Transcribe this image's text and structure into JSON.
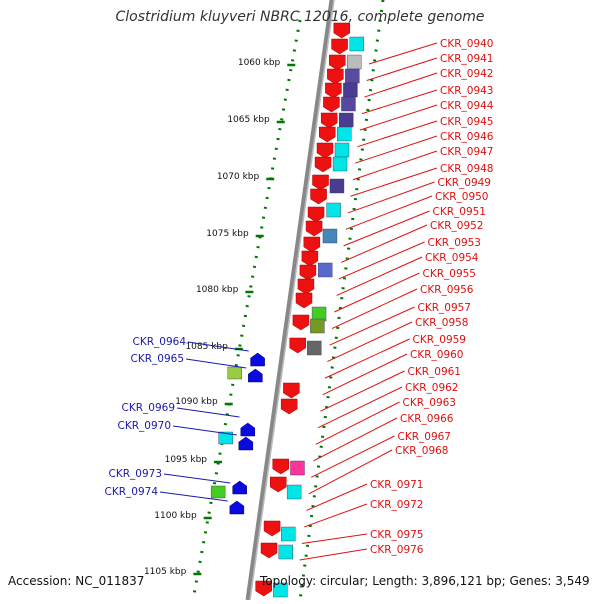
{
  "title": "Clostridium kluyveri NBRC 12016, complete genome",
  "footer": {
    "accession": "Accession: NC_011837",
    "topology": "Topology: circular; Length: 3,896,121 bp; Genes: 3,549"
  },
  "colors": {
    "forward_gene": "#ee1111",
    "reverse_gene": "#0a0ae0",
    "right_label": "#dd1111",
    "left_label": "#1a1aaa",
    "scale_tick": "#007700",
    "backbone": "#888888"
  },
  "scale_ticks": [
    "1060 kbp",
    "1065 kbp",
    "1070 kbp",
    "1075 kbp",
    "1080 kbp",
    "1085 kbp",
    "1090 kbp",
    "1095 kbp",
    "1100 kbp",
    "1105 kbp"
  ],
  "right_genes": [
    "CKR_0940",
    "CKR_0941",
    "CKR_0942",
    "CKR_0943",
    "CKR_0944",
    "CKR_0945",
    "CKR_0946",
    "CKR_0947",
    "CKR_0948",
    "CKR_0949",
    "CKR_0950",
    "CKR_0951",
    "CKR_0952",
    "CKR_0953",
    "CKR_0954",
    "CKR_0955",
    "CKR_0956",
    "CKR_0957",
    "CKR_0958",
    "CKR_0959",
    "CKR_0960",
    "CKR_0961",
    "CKR_0962",
    "CKR_0963",
    "CKR_0966",
    "CKR_0967",
    "CKR_0968",
    "CKR_0971",
    "CKR_0972",
    "CKR_0975",
    "CKR_0976"
  ],
  "left_genes": [
    "CKR_0964",
    "CKR_0965",
    "CKR_0969",
    "CKR_0970",
    "CKR_0973",
    "CKR_0974"
  ]
}
